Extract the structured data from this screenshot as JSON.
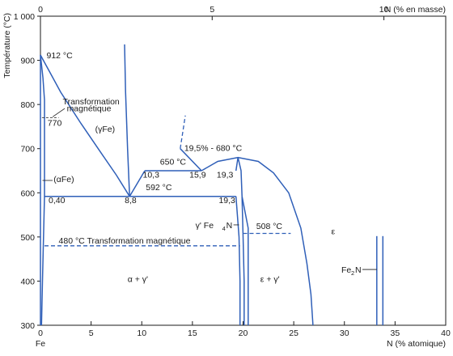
{
  "chart_data": {
    "type": "line",
    "title": "",
    "ylabel": "Température (°C)",
    "xlabel_bottom": "N (% atomique)",
    "xlabel_top": "N (% en masse)",
    "xlim_bottom": [
      0,
      40
    ],
    "xlim_top": [
      0,
      11.8
    ],
    "ylim": [
      300,
      1000
    ],
    "grid": false,
    "x_ticks_bottom": [
      "0",
      "5",
      "10",
      "15",
      "20",
      "25",
      "30",
      "35",
      "40"
    ],
    "x_ticks_top": [
      "0",
      "5",
      "10"
    ],
    "y_ticks": [
      "300",
      "400",
      "500",
      "600",
      "700",
      "800",
      "900",
      "1 000"
    ],
    "origin_label": "Fe",
    "series": [
      {
        "kind": "solid",
        "points": [
          [
            0,
            912
          ],
          [
            0,
            300
          ]
        ]
      },
      {
        "kind": "solid",
        "points": [
          [
            0,
            912
          ],
          [
            1,
            870
          ],
          [
            2,
            828
          ],
          [
            4,
            757
          ],
          [
            6,
            690
          ],
          [
            7.5,
            640
          ],
          [
            8.8,
            592
          ]
        ]
      },
      {
        "kind": "solid",
        "points": [
          [
            0,
            912
          ],
          [
            0.25,
            860
          ],
          [
            0.4,
            810
          ],
          [
            0.4,
            770
          ],
          [
            0.4,
            680
          ],
          [
            0.4,
            592
          ],
          [
            0.3,
            500
          ],
          [
            0.2,
            400
          ],
          [
            0.1,
            300
          ]
        ]
      },
      {
        "kind": "solid",
        "points": [
          [
            8.8,
            592
          ],
          [
            10.3,
            650
          ]
        ]
      },
      {
        "kind": "solid",
        "points": [
          [
            8.8,
            592
          ],
          [
            8.6,
            700
          ],
          [
            8.4,
            830
          ],
          [
            8.3,
            936
          ]
        ]
      },
      {
        "kind": "solid",
        "points": [
          [
            10.3,
            650
          ],
          [
            15.9,
            650
          ]
        ]
      },
      {
        "kind": "solid",
        "points": [
          [
            13.8,
            700
          ],
          [
            15.9,
            650
          ]
        ]
      },
      {
        "kind": "dashed",
        "points": [
          [
            13.8,
            700
          ],
          [
            14.3,
            775
          ]
        ]
      },
      {
        "kind": "solid",
        "points": [
          [
            15.9,
            650
          ],
          [
            17.5,
            671
          ],
          [
            19.5,
            680
          ],
          [
            21.5,
            671
          ],
          [
            23,
            645
          ],
          [
            24.5,
            600
          ],
          [
            25.7,
            520
          ],
          [
            26.3,
            440
          ],
          [
            26.7,
            370
          ],
          [
            26.9,
            300
          ]
        ]
      },
      {
        "kind": "solid",
        "points": [
          [
            19.3,
            650
          ],
          [
            19.5,
            680
          ],
          [
            19.8,
            650
          ],
          [
            19.9,
            592
          ]
        ]
      },
      {
        "kind": "solid",
        "points": [
          [
            0.4,
            592
          ],
          [
            19.3,
            592
          ]
        ]
      },
      {
        "kind": "solid",
        "points": [
          [
            19.3,
            592
          ],
          [
            19.6,
            500
          ],
          [
            19.7,
            400
          ],
          [
            19.7,
            300
          ]
        ]
      },
      {
        "kind": "solid",
        "points": [
          [
            19.9,
            592
          ],
          [
            20.0,
            500
          ],
          [
            20.1,
            400
          ],
          [
            20.1,
            300
          ]
        ]
      },
      {
        "kind": "solid",
        "points": [
          [
            19.9,
            592
          ],
          [
            20.5,
            520
          ],
          [
            20.5,
            300
          ]
        ]
      },
      {
        "kind": "dashed",
        "points": [
          [
            0.4,
            480
          ],
          [
            19.7,
            480
          ]
        ]
      },
      {
        "kind": "dashed",
        "points": [
          [
            20.0,
            508
          ],
          [
            24.7,
            508
          ]
        ]
      },
      {
        "kind": "solid",
        "points": [
          [
            33.2,
            502
          ],
          [
            33.2,
            300
          ]
        ]
      },
      {
        "kind": "solid",
        "points": [
          [
            33.8,
            502
          ],
          [
            33.8,
            300
          ]
        ]
      }
    ],
    "points_labels": [
      {
        "text": "912 °C"
      },
      {
        "text": "770"
      },
      {
        "text": "0,40"
      },
      {
        "text": "8,8"
      },
      {
        "text": "10,3"
      },
      {
        "text": "15,9"
      },
      {
        "text": "19,3"
      },
      {
        "text": "19,3"
      },
      {
        "text": "650 °C"
      },
      {
        "text": "592 °C"
      },
      {
        "text": "19,5% - 680 °C"
      },
      {
        "text": "508 °C"
      }
    ],
    "annotations": {
      "magnetic_1": "Transformation",
      "magnetic_2": "magnétique",
      "gamma_fe": "(γFe)",
      "alpha_fe": "(αFe)",
      "transfo_480": "480 °C  Transformation magnétique",
      "gamma_prime_fe4n": "γ' Fe",
      "gamma_prime_sub": "4",
      "gamma_prime_n": "N",
      "epsilon": "ε",
      "alpha_gamma": "α + γ'",
      "eps_gamma": "ε + γ'",
      "fe2n": "Fe",
      "fe2n_sub": "2",
      "fe2n_n": "N"
    },
    "colors": {
      "phase_lines": "#2f5fb8",
      "text": "#1a1a1a"
    }
  }
}
